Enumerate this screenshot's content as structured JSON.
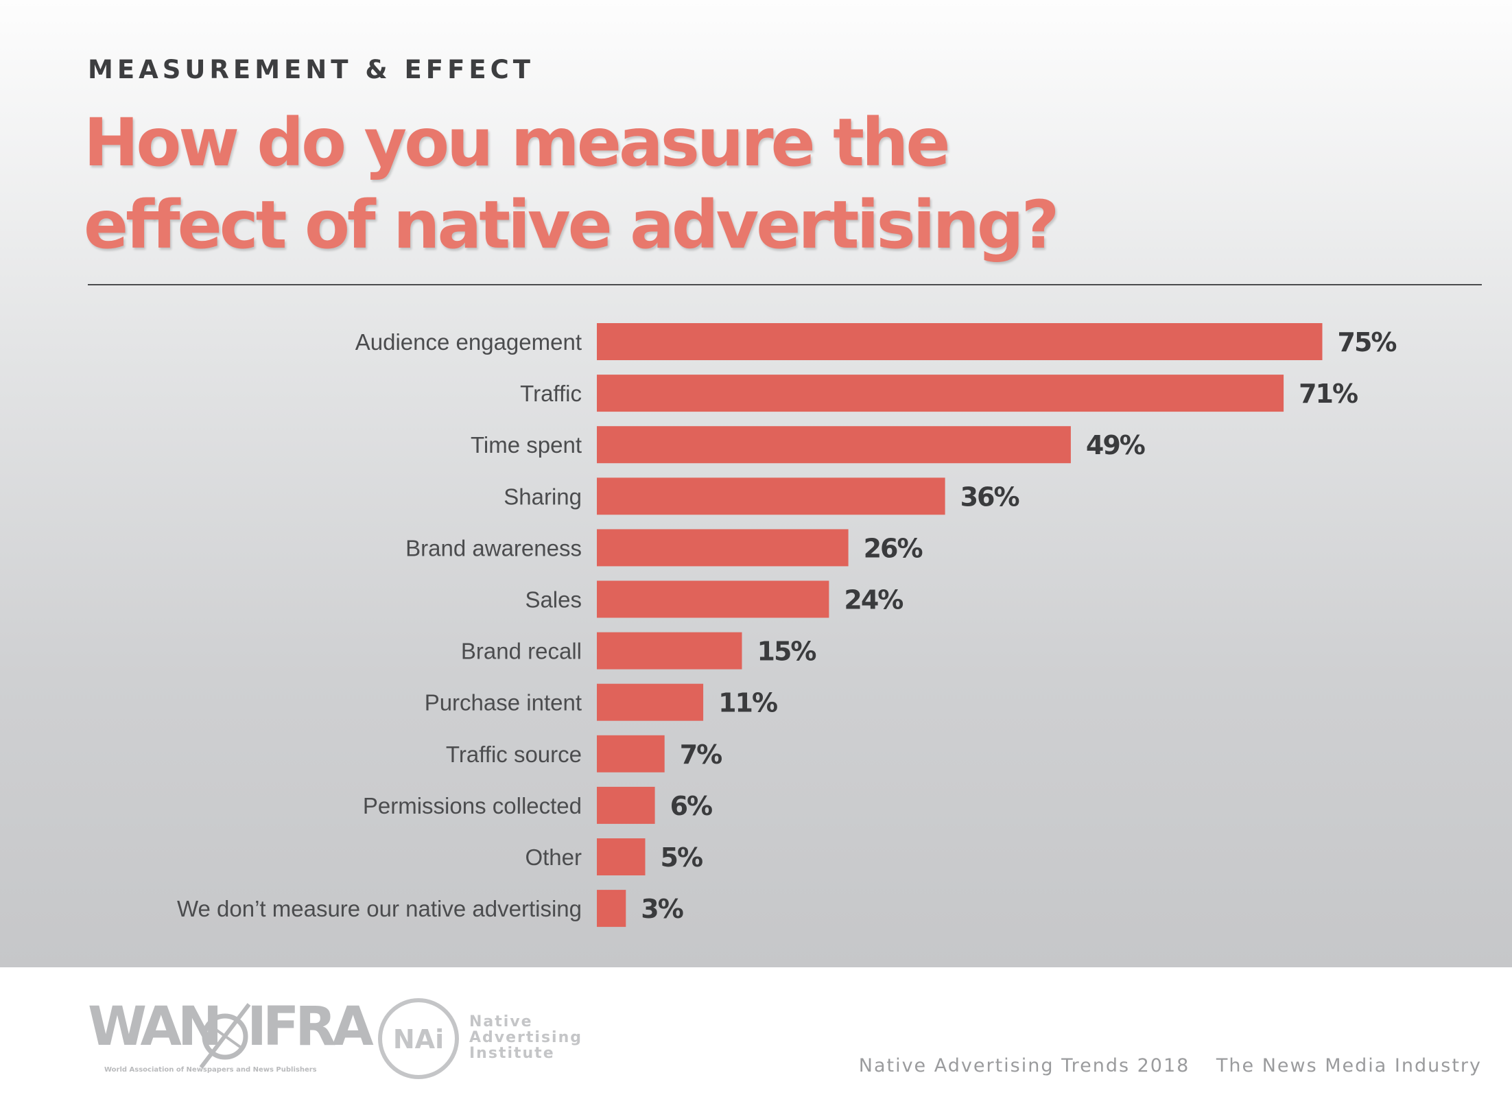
{
  "header": {
    "eyebrow": "MEASUREMENT & EFFECT",
    "title_line1": "How do you measure the",
    "title_line2": "effect of native advertising?"
  },
  "colors": {
    "bar": "#e0635a",
    "title": "#e8786c",
    "text": "#4b4c4e"
  },
  "chart_data": {
    "type": "bar",
    "orientation": "horizontal",
    "title": "How do you measure the effect of native advertising?",
    "categories": [
      "Audience engagement",
      "Traffic",
      "Time spent",
      "Sharing",
      "Brand awareness",
      "Sales",
      "Brand recall",
      "Purchase intent",
      "Traffic source",
      "Permissions collected",
      "Other",
      "We don’t measure our native advertising"
    ],
    "values": [
      75,
      71,
      49,
      36,
      26,
      24,
      15,
      11,
      7,
      6,
      5,
      3
    ],
    "value_labels": [
      "75%",
      "71%",
      "49%",
      "36%",
      "26%",
      "24%",
      "15%",
      "11%",
      "7%",
      "6%",
      "5%",
      "3%"
    ],
    "unit": "%",
    "xlim": [
      0,
      100
    ],
    "grid": false,
    "legend": "none"
  },
  "footer": {
    "wan_left": "WAN",
    "wan_right": "IFRA",
    "wan_tagline": "World Association of Newspapers and News Publishers",
    "nai_monogram": "NAi",
    "nai_line1": "Native",
    "nai_line2": "Advertising",
    "nai_line3": "Institute",
    "source_left": "Native Advertising Trends 2018",
    "source_right": "The News Media Industry"
  }
}
